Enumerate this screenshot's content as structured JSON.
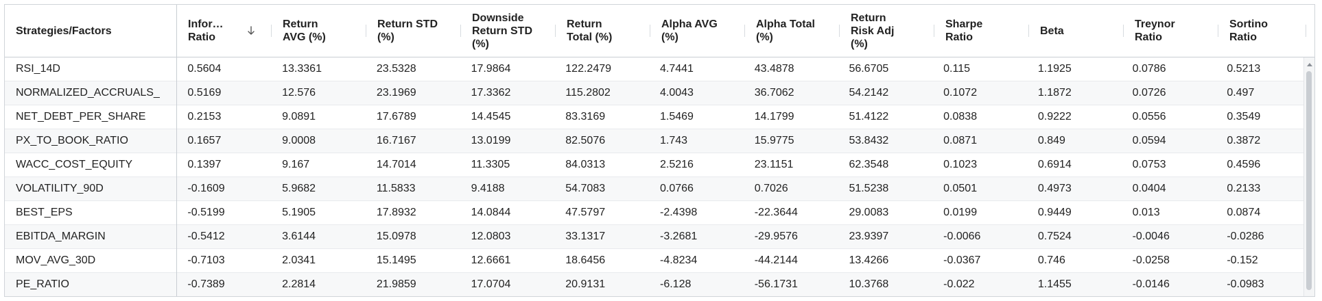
{
  "grid": {
    "columns": [
      {
        "key": "name",
        "label": "Strategies/Factors"
      },
      {
        "key": "info_ratio",
        "label": "Infor…\nRatio",
        "sort": "descending"
      },
      {
        "key": "return_avg",
        "label": "Return\nAVG (%)"
      },
      {
        "key": "return_std",
        "label": "Return STD\n(%)"
      },
      {
        "key": "downside_std",
        "label": "Downside\nReturn STD\n(%)"
      },
      {
        "key": "return_total",
        "label": "Return\nTotal (%)"
      },
      {
        "key": "alpha_avg",
        "label": "Alpha AVG\n(%)"
      },
      {
        "key": "alpha_total",
        "label": "Alpha Total\n(%)"
      },
      {
        "key": "return_risk_adj",
        "label": "Return\nRisk Adj\n(%)"
      },
      {
        "key": "sharpe",
        "label": "Sharpe\nRatio"
      },
      {
        "key": "beta",
        "label": "Beta"
      },
      {
        "key": "treynor",
        "label": "Treynor\nRatio"
      },
      {
        "key": "sortino",
        "label": "Sortino\nRatio"
      }
    ],
    "rows": [
      [
        "RSI_14D",
        "0.5604",
        "13.3361",
        "23.5328",
        "17.9864",
        "122.2479",
        "4.7441",
        "43.4878",
        "56.6705",
        "0.115",
        "1.1925",
        "0.0786",
        "0.5213"
      ],
      [
        "NORMALIZED_ACCRUALS_",
        "0.5169",
        "12.576",
        "23.1969",
        "17.3362",
        "115.2802",
        "4.0043",
        "36.7062",
        "54.2142",
        "0.1072",
        "1.1872",
        "0.0726",
        "0.497"
      ],
      [
        "NET_DEBT_PER_SHARE",
        "0.2153",
        "9.0891",
        "17.6789",
        "14.4545",
        "83.3169",
        "1.5469",
        "14.1799",
        "51.4122",
        "0.0838",
        "0.9222",
        "0.0556",
        "0.3549"
      ],
      [
        "PX_TO_BOOK_RATIO",
        "0.1657",
        "9.0008",
        "16.7167",
        "13.0199",
        "82.5076",
        "1.743",
        "15.9775",
        "53.8432",
        "0.0871",
        "0.849",
        "0.0594",
        "0.3872"
      ],
      [
        "WACC_COST_EQUITY",
        "0.1397",
        "9.167",
        "14.7014",
        "11.3305",
        "84.0313",
        "2.5216",
        "23.1151",
        "62.3548",
        "0.1023",
        "0.6914",
        "0.0753",
        "0.4596"
      ],
      [
        "VOLATILITY_90D",
        "-0.1609",
        "5.9682",
        "11.5833",
        "9.4188",
        "54.7083",
        "0.0766",
        "0.7026",
        "51.5238",
        "0.0501",
        "0.4973",
        "0.0404",
        "0.2133"
      ],
      [
        "BEST_EPS",
        "-0.5199",
        "5.1905",
        "17.8932",
        "14.0844",
        "47.5797",
        "-2.4398",
        "-22.3644",
        "29.0083",
        "0.0199",
        "0.9449",
        "0.013",
        "0.0874"
      ],
      [
        "EBITDA_MARGIN",
        "-0.5412",
        "3.6144",
        "15.0978",
        "12.0803",
        "33.1317",
        "-3.2681",
        "-29.9576",
        "23.9397",
        "-0.0066",
        "0.7524",
        "-0.0046",
        "-0.0286"
      ],
      [
        "MOV_AVG_30D",
        "-0.7103",
        "2.0341",
        "15.1495",
        "12.6661",
        "18.6456",
        "-4.8234",
        "-44.2144",
        "13.4266",
        "-0.0367",
        "0.746",
        "-0.0258",
        "-0.152"
      ],
      [
        "PE_RATIO",
        "-0.7389",
        "2.2814",
        "21.9859",
        "17.0704",
        "20.9131",
        "-6.128",
        "-56.1731",
        "10.3768",
        "-0.022",
        "1.1455",
        "-0.0146",
        "-0.0983"
      ]
    ],
    "colors": {
      "border": "#d0d4d9",
      "row_alt": "#f7f8f9",
      "text": "#222222"
    },
    "icons": {
      "sort": "arrow-down-icon"
    }
  }
}
